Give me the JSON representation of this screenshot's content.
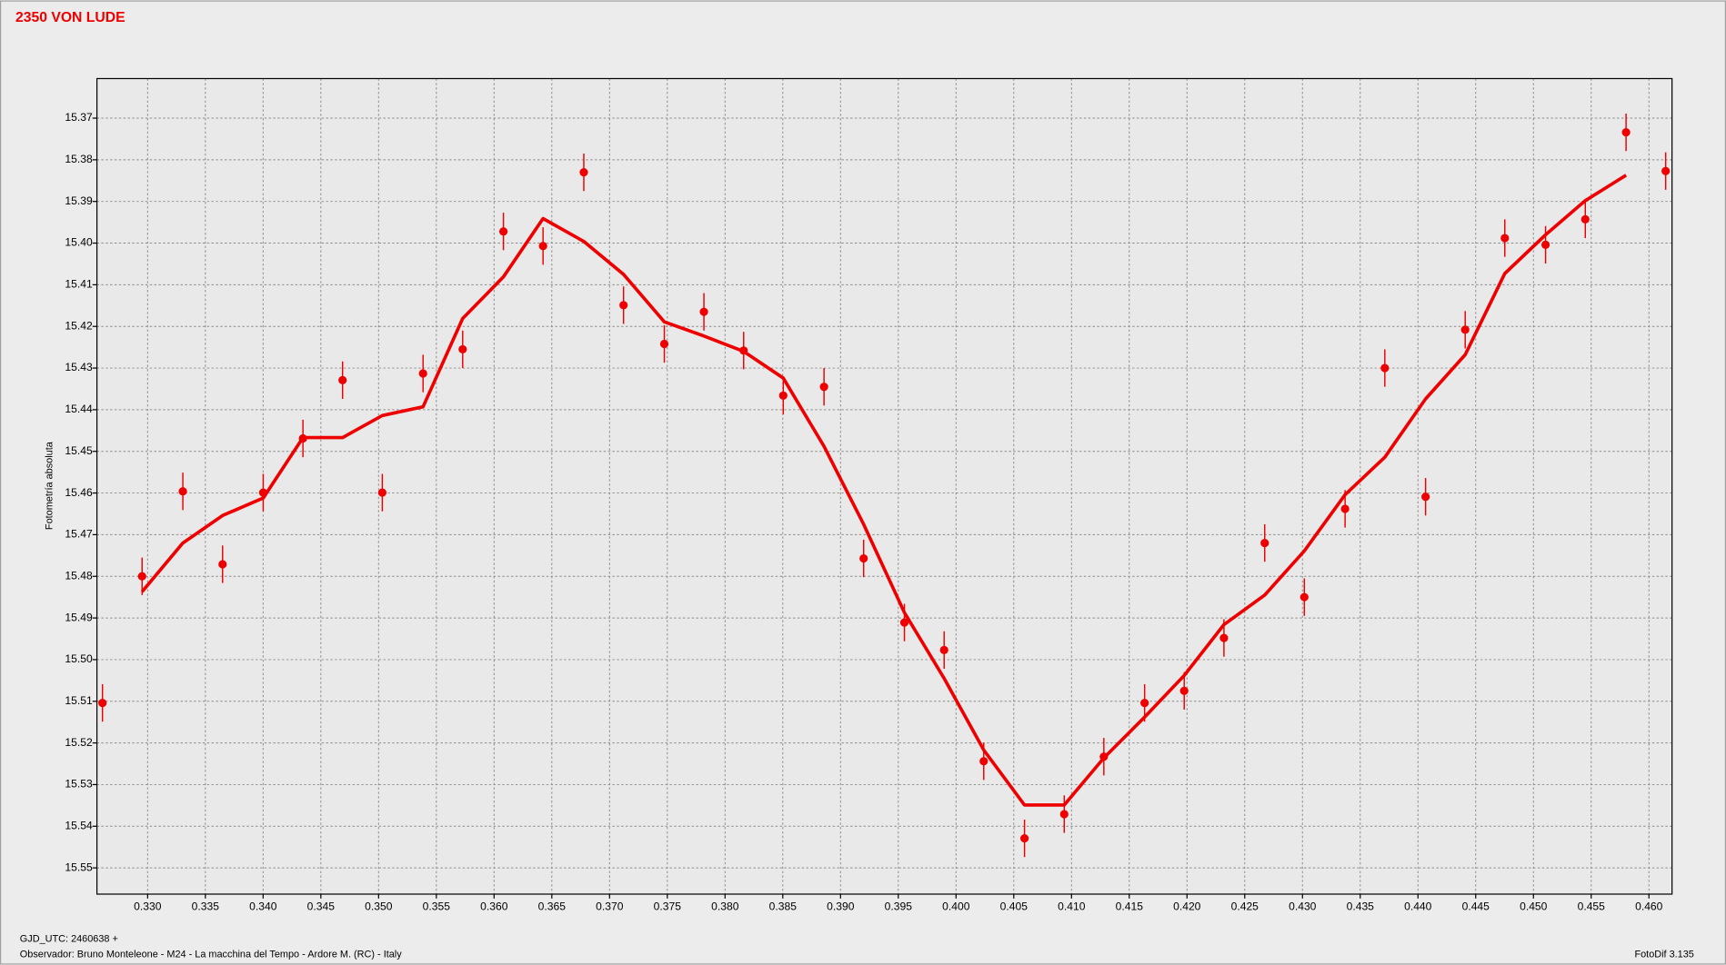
{
  "chart_data": {
    "type": "scatter",
    "title": "2350 VON LUDE",
    "y_label": "Fotometría absoluta",
    "footer_left": "GJD_UTC: 2460638 +",
    "footer_observer": "Observador: Bruno Monteleone - M24 - La macchina del Tempo - Ardore M. (RC) - Italy",
    "footer_right": "FotoDif 3.135",
    "xlim": [
      0.32561,
      0.462
    ],
    "ylim": [
      15.5563,
      15.3605
    ],
    "grid": true,
    "xticks": [
      {
        "value": 0.33,
        "label": "0.330"
      },
      0.335,
      {
        "value": 0.34,
        "label": "0.340"
      },
      0.345,
      {
        "value": 0.35,
        "label": "0.350"
      },
      0.355,
      {
        "value": 0.36,
        "label": "0.360"
      },
      0.365,
      {
        "value": 0.37,
        "label": "0.370"
      },
      0.375,
      {
        "value": 0.38,
        "label": "0.380"
      },
      0.385,
      {
        "value": 0.39,
        "label": "0.390"
      },
      0.395,
      {
        "value": 0.4,
        "label": "0.400"
      },
      0.405,
      {
        "value": 0.41,
        "label": "0.410"
      },
      0.415,
      {
        "value": 0.42,
        "label": "0.420"
      },
      0.425,
      {
        "value": 0.43,
        "label": "0.430"
      },
      0.435,
      {
        "value": 0.44,
        "label": "0.440"
      },
      0.445,
      {
        "value": 0.45,
        "label": "0.450"
      },
      0.455,
      {
        "value": 0.46,
        "label": "0.460"
      }
    ],
    "yticks": [
      15.37,
      15.38,
      15.39,
      {
        "value": 15.4,
        "label": "15.40"
      },
      15.41,
      15.42,
      15.43,
      15.44,
      15.45,
      15.46,
      15.47,
      15.48,
      15.49,
      {
        "value": 15.5,
        "label": "15.50"
      },
      15.51,
      15.52,
      15.53,
      15.54,
      15.55
    ],
    "series": [
      {
        "type": "scatter",
        "color": "#ee0000",
        "x": [
          0.32609,
          0.32952,
          0.33305,
          0.33649,
          0.34001,
          0.34345,
          0.34688,
          0.35032,
          0.35385,
          0.35728,
          0.36081,
          0.36424,
          0.36777,
          0.37121,
          0.37474,
          0.37817,
          0.38161,
          0.38504,
          0.38857,
          0.392,
          0.39553,
          0.39897,
          0.4024,
          0.40593,
          0.40937,
          0.4128,
          0.41633,
          0.41976,
          0.4232,
          0.42673,
          0.43016,
          0.43369,
          0.43713,
          0.44066,
          0.44409,
          0.44752,
          0.45105,
          0.45449,
          0.45802,
          0.46145
        ],
        "values": [
          15.5104,
          15.48,
          15.4596,
          15.4771,
          15.4599,
          15.4469,
          15.4329,
          15.4599,
          15.4313,
          15.4255,
          15.3972,
          15.4007,
          15.383,
          15.4149,
          15.4242,
          15.4165,
          15.4258,
          15.4366,
          15.4345,
          15.4757,
          15.4911,
          15.4977,
          15.5244,
          15.5429,
          15.5371,
          15.5233,
          15.5104,
          15.5075,
          15.4948,
          15.472,
          15.485,
          15.4638,
          15.43,
          15.4609,
          15.4208,
          15.3988,
          15.4004,
          15.3943,
          15.3734,
          15.3827
        ],
        "errors": [
          0.0045,
          0.0045,
          0.0045,
          0.0045,
          0.0045,
          0.0045,
          0.0045,
          0.0045,
          0.0045,
          0.0045,
          0.0045,
          0.0045,
          0.0045,
          0.0045,
          0.0045,
          0.0045,
          0.0045,
          0.0045,
          0.0045,
          0.0045,
          0.0045,
          0.0045,
          0.0045,
          0.0045,
          0.0045,
          0.0045,
          0.0045,
          0.0045,
          0.0045,
          0.0045,
          0.0045,
          0.0045,
          0.0045,
          0.0045,
          0.0045,
          0.0045,
          0.0045,
          0.0045,
          0.0045,
          0.0045
        ]
      },
      {
        "type": "line",
        "color": "#ee0000",
        "x": [
          0.32952,
          0.33305,
          0.33649,
          0.34001,
          0.34345,
          0.34688,
          0.35032,
          0.35385,
          0.35728,
          0.36081,
          0.36424,
          0.36777,
          0.37121,
          0.37474,
          0.37817,
          0.38161,
          0.38504,
          0.38857,
          0.392,
          0.39553,
          0.39897,
          0.4024,
          0.40593,
          0.40937,
          0.4128,
          0.41633,
          0.41976,
          0.4232,
          0.42673,
          0.43016,
          0.43369,
          0.43713,
          0.44066,
          0.44409,
          0.44752,
          0.45105,
          0.45449,
          0.45802
        ],
        "values": [
          15.4837,
          15.472,
          15.4654,
          15.4612,
          15.4467,
          15.4467,
          15.4414,
          15.4393,
          15.4181,
          15.4081,
          15.3941,
          15.3996,
          15.4075,
          15.4189,
          15.4223,
          15.426,
          15.4324,
          15.4488,
          15.4675,
          15.4887,
          15.5045,
          15.5217,
          15.5349,
          15.5349,
          15.5236,
          15.5138,
          15.5038,
          15.4916,
          15.4845,
          15.4739,
          15.4604,
          15.4514,
          15.4374,
          15.4268,
          15.4073,
          15.398,
          15.3898,
          15.3837
        ]
      }
    ]
  }
}
